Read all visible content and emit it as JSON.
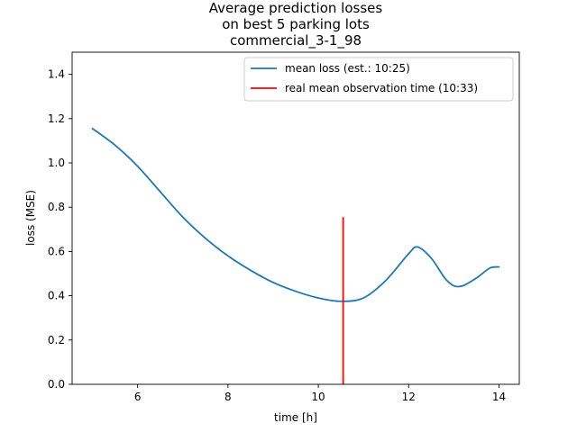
{
  "chart_data": {
    "type": "line",
    "title_lines": [
      "Average prediction losses",
      "on best 5 parking lots",
      "commercial_3-1_98"
    ],
    "xlabel": "time [h]",
    "ylabel": "loss (MSE)",
    "xlim": [
      4.55,
      14.45
    ],
    "ylim": [
      0,
      1.5
    ],
    "xticks": [
      6,
      8,
      10,
      12,
      14
    ],
    "xtick_labels": [
      "6",
      "8",
      "10",
      "12",
      "14"
    ],
    "yticks": [
      0.0,
      0.2,
      0.4,
      0.6,
      0.8,
      1.0,
      1.2,
      1.4
    ],
    "ytick_labels": [
      "0.0",
      "0.2",
      "0.4",
      "0.6",
      "0.8",
      "1.0",
      "1.2",
      "1.4"
    ],
    "grid": false,
    "legend_position": "top-right",
    "series": [
      {
        "name": "mean loss (est.: 10:25)",
        "color": "#1f77b4",
        "x": [
          5.0,
          5.5,
          6.0,
          6.5,
          7.0,
          7.5,
          8.0,
          8.5,
          9.0,
          9.5,
          10.0,
          10.5,
          11.0,
          11.5,
          12.0,
          12.2,
          12.5,
          12.8,
          13.0,
          13.2,
          13.5,
          13.8,
          14.0
        ],
        "y": [
          1.155,
          1.08,
          0.985,
          0.87,
          0.755,
          0.66,
          0.58,
          0.515,
          0.46,
          0.42,
          0.39,
          0.375,
          0.39,
          0.47,
          0.59,
          0.62,
          0.57,
          0.48,
          0.445,
          0.445,
          0.48,
          0.525,
          0.53
        ]
      }
    ],
    "vline": {
      "name": "real mean observation time (10:33)",
      "color": "#ff0000",
      "x": 10.55,
      "y": [
        0,
        0.755
      ]
    }
  }
}
